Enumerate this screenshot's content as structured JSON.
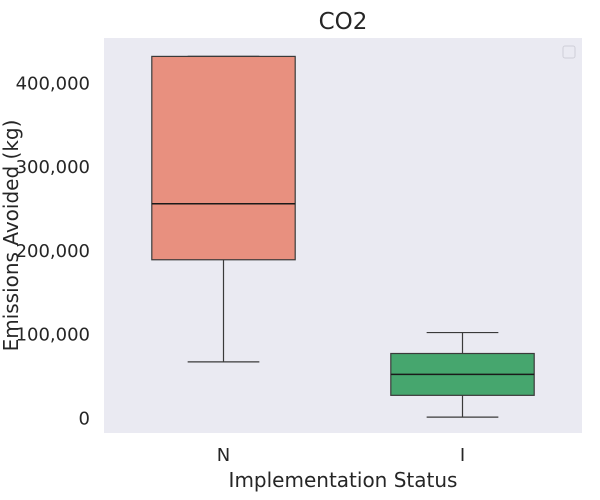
{
  "chart_data": {
    "type": "box",
    "title": "CO2",
    "xlabel": "Implementation Status",
    "ylabel": "Emissions Avoided (kg)",
    "categories": [
      "N",
      "I"
    ],
    "boxes": [
      {
        "category": "N",
        "whisker_low": 68000,
        "q1": 190000,
        "median": 257000,
        "q3": 433000,
        "whisker_high": 433000,
        "color": "#E8907F"
      },
      {
        "category": "I",
        "whisker_low": 2000,
        "q1": 28000,
        "median": 53000,
        "q3": 78000,
        "whisker_high": 103000,
        "color": "#46A66E"
      }
    ],
    "ylim": [
      -17000,
      455000
    ],
    "yticks": [
      0,
      100000,
      200000,
      300000,
      400000
    ],
    "ytick_labels": [
      "0",
      "100,000",
      "200,000",
      "300,000",
      "400,000"
    ],
    "grid": false,
    "legend": {
      "position": "top-right",
      "entries": []
    },
    "background": "#EAEAF2"
  }
}
